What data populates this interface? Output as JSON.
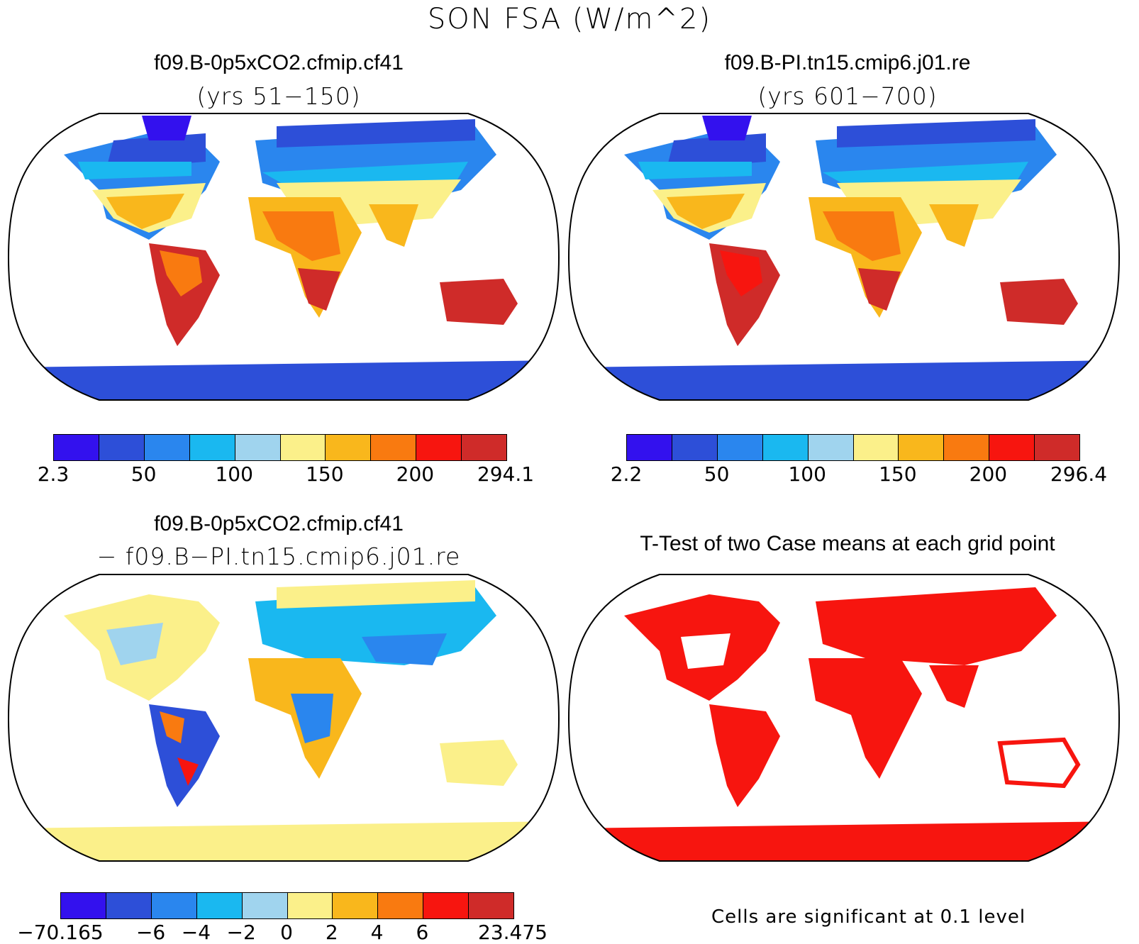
{
  "title": "SON FSA (W/m^2)",
  "panels": {
    "case1": {
      "title": "f09.B-0p5xCO2.cfmip.cf41",
      "subtitle": "(yrs 51−150)"
    },
    "case2": {
      "title": "f09.B-PI.tn15.cmip6.j01.re",
      "subtitle": "(yrs 601−700)"
    },
    "diff": {
      "title": "f09.B-0p5xCO2.cfmip.cf41",
      "subtitle": "− f09.B−PI.tn15.cmip6.j01.re"
    },
    "ttest": {
      "title": "T-Test of two Case means at each grid point",
      "note": "Cells are significant at 0.1 level"
    }
  },
  "colorbars": {
    "case1": {
      "colors": [
        "#3311ee",
        "#2d4fd8",
        "#2a86ee",
        "#1ab8f0",
        "#a0d4ee",
        "#fbf08a",
        "#f9b71c",
        "#f97a10",
        "#f7150f",
        "#cf2b29"
      ],
      "ticks": [
        "2.3",
        "50",
        "100",
        "150",
        "200",
        "294.1"
      ]
    },
    "case2": {
      "colors": [
        "#3311ee",
        "#2d4fd8",
        "#2a86ee",
        "#1ab8f0",
        "#a0d4ee",
        "#fbf08a",
        "#f9b71c",
        "#f97a10",
        "#f7150f",
        "#cf2b29"
      ],
      "ticks": [
        "2.2",
        "50",
        "100",
        "150",
        "200",
        "296.4"
      ]
    },
    "diff": {
      "colors": [
        "#3311ee",
        "#2d4fd8",
        "#2a86ee",
        "#1ab8f0",
        "#a0d4ee",
        "#fbf08a",
        "#f9b71c",
        "#f97a10",
        "#f7150f",
        "#cf2b29"
      ],
      "ticks": [
        "−70.165",
        "−6",
        "−4",
        "−2",
        "0",
        "2",
        "4",
        "6",
        "23.475"
      ]
    }
  }
}
